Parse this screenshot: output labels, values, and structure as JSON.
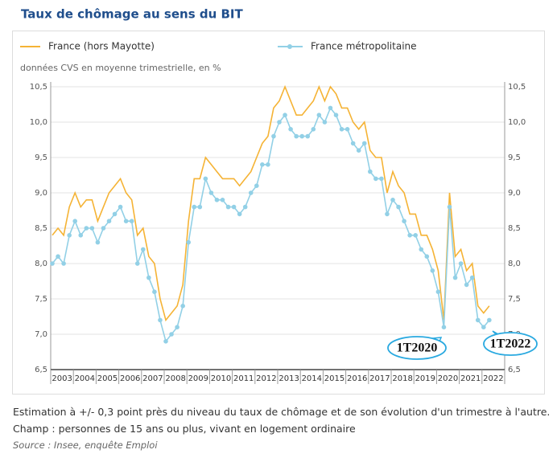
{
  "chart_data": {
    "type": "line",
    "title": "Taux de chômage au sens du BIT",
    "subtitle": "données CVS en moyenne trimestrielle, en %",
    "categories": [
      "2003",
      null,
      null,
      null,
      "2004",
      null,
      null,
      null,
      "2005",
      null,
      null,
      null,
      "2006",
      null,
      null,
      null,
      "2007",
      null,
      null,
      null,
      "2008",
      null,
      null,
      null,
      "2009",
      null,
      null,
      null,
      "2010",
      null,
      null,
      null,
      "2011",
      null,
      null,
      null,
      "2012",
      null,
      null,
      null,
      "2013",
      null,
      null,
      null,
      "2014",
      null,
      null,
      null,
      "2015",
      null,
      null,
      null,
      "2016",
      null,
      null,
      null,
      "2017",
      null,
      null,
      null,
      "2018",
      null,
      null,
      null,
      "2019",
      null,
      null,
      null,
      "2020",
      null,
      null,
      null,
      "2021",
      null,
      null,
      null,
      "2022",
      null
    ],
    "series": [
      {
        "name": "France (hors Mayotte)",
        "color": "#f5b335",
        "markers": false,
        "values": [
          8.4,
          8.5,
          8.4,
          8.8,
          9.0,
          8.8,
          8.9,
          8.9,
          8.6,
          8.8,
          9.0,
          9.1,
          9.2,
          9.0,
          8.9,
          8.4,
          8.5,
          8.1,
          8.0,
          7.5,
          7.2,
          7.3,
          7.4,
          7.7,
          8.6,
          9.2,
          9.2,
          9.5,
          9.4,
          9.3,
          9.2,
          9.2,
          9.2,
          9.1,
          9.2,
          9.3,
          9.5,
          9.7,
          9.8,
          10.2,
          10.3,
          10.5,
          10.3,
          10.1,
          10.1,
          10.2,
          10.3,
          10.5,
          10.3,
          10.5,
          10.4,
          10.2,
          10.2,
          10.0,
          9.9,
          10.0,
          9.6,
          9.5,
          9.5,
          9.0,
          9.3,
          9.1,
          9.0,
          8.7,
          8.7,
          8.4,
          8.4,
          8.2,
          7.9,
          7.2,
          9.0,
          8.1,
          8.2,
          7.9,
          8.0,
          7.4,
          7.3,
          7.4
        ]
      },
      {
        "name": "France métropolitaine",
        "color": "#92d0e6",
        "markers": true,
        "values": [
          8.0,
          8.1,
          8.0,
          8.4,
          8.6,
          8.4,
          8.5,
          8.5,
          8.3,
          8.5,
          8.6,
          8.7,
          8.8,
          8.6,
          8.6,
          8.0,
          8.2,
          7.8,
          7.6,
          7.2,
          6.9,
          7.0,
          7.1,
          7.4,
          8.3,
          8.8,
          8.8,
          9.2,
          9.0,
          8.9,
          8.9,
          8.8,
          8.8,
          8.7,
          8.8,
          9.0,
          9.1,
          9.4,
          9.4,
          9.8,
          10.0,
          10.1,
          9.9,
          9.8,
          9.8,
          9.8,
          9.9,
          10.1,
          10.0,
          10.2,
          10.1,
          9.9,
          9.9,
          9.7,
          9.6,
          9.7,
          9.3,
          9.2,
          9.2,
          8.7,
          8.9,
          8.8,
          8.6,
          8.4,
          8.4,
          8.2,
          8.1,
          7.9,
          7.6,
          7.1,
          8.8,
          7.8,
          8.0,
          7.7,
          7.8,
          7.2,
          7.1,
          7.2
        ]
      }
    ],
    "ylim": [
      6.5,
      10.5
    ],
    "yticks": [
      {
        "value": 6.5,
        "label": "6,5"
      },
      {
        "value": 7,
        "label": "7,0"
      },
      {
        "value": 7.5,
        "label": "7,5"
      },
      {
        "value": 8,
        "label": "8,0"
      },
      {
        "value": 8.5,
        "label": "8,5"
      },
      {
        "value": 9,
        "label": "9,0"
      },
      {
        "value": 9.5,
        "label": "9,5"
      },
      {
        "value": 10,
        "label": "10,0"
      },
      {
        "value": 10.5,
        "label": "10,5"
      }
    ],
    "grid": true,
    "annotations": [
      "1T2020",
      "1T2022"
    ],
    "notes": [
      "Estimation à +/- 0,3 point près du niveau du taux de chômage et de son évolution d'un trimestre à l'autre.",
      "Champ : personnes de 15 ans ou plus, vivant en logement ordinaire"
    ],
    "source": "Source : Insee, enquête Emploi"
  }
}
